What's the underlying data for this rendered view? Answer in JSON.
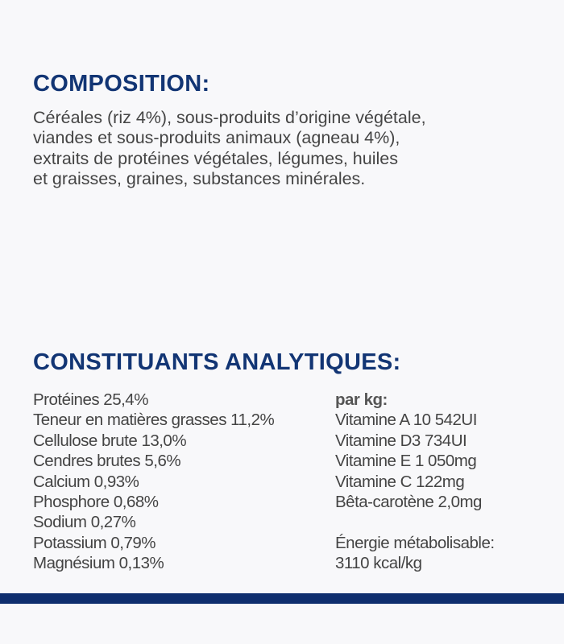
{
  "composition": {
    "title": "COMPOSITION:",
    "lines": [
      "Céréales (riz 4%), sous-produits d’origine végétale,",
      "viandes et sous-produits animaux (agneau 4%),",
      "extraits de protéines végétales, légumes, huiles",
      "et graisses, graines, substances minérales."
    ]
  },
  "analytical": {
    "title": "CONSTITUANTS ANALYTIQUES:",
    "left": [
      "Protéines 25,4%",
      "Teneur en matières grasses 11,2%",
      "Cellulose brute 13,0%",
      "Cendres brutes 5,6%",
      "Calcium 0,93%",
      "Phosphore 0,68%",
      "Sodium 0,27%",
      "Potassium 0,79%",
      "Magnésium 0,13%"
    ],
    "per_kg_label": "par kg:",
    "vitamins": [
      "Vitamine A 10 542UI",
      "Vitamine D3 734UI",
      "Vitamine E 1 050mg",
      "Vitamine C 122mg",
      "Bêta-carotène 2,0mg"
    ],
    "energy_label": "Énergie métabolisable:",
    "energy_value": "3110 kcal/kg"
  },
  "colors": {
    "heading": "#123574",
    "bar": "#0f2e6e",
    "text": "#444444",
    "background": "#f8f8fa"
  }
}
